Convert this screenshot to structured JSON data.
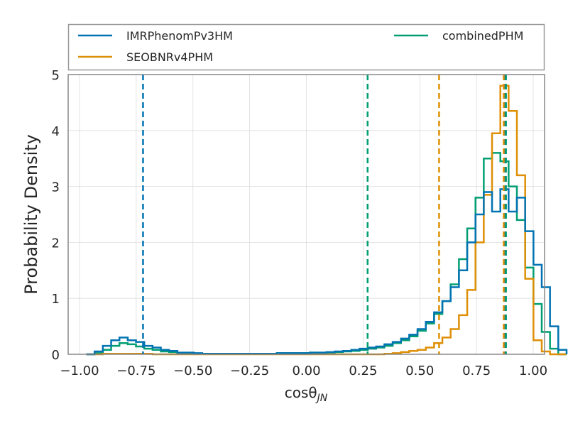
{
  "chart_data": {
    "type": "histogram",
    "xlabel": "cosθ",
    "xlabel_sub": "JN",
    "ylabel": "Probability Density",
    "xlim": [
      -1.05,
      1.05
    ],
    "ylim": [
      0,
      5
    ],
    "xticks": [
      -1.0,
      -0.75,
      -0.5,
      -0.25,
      0.0,
      0.25,
      0.5,
      0.75,
      1.0
    ],
    "xtick_labels": [
      "−1.00",
      "−0.75",
      "−0.50",
      "−0.25",
      "0.00",
      "0.25",
      "0.50",
      "0.75",
      "1.00"
    ],
    "yticks": [
      0,
      1,
      2,
      3,
      4,
      5
    ],
    "ytick_labels": [
      "0",
      "1",
      "2",
      "3",
      "4",
      "5"
    ],
    "grid": true,
    "legend_position": "top (outside), 2 columns",
    "bin_start": -0.97,
    "bin_width": 0.0365,
    "series": [
      {
        "name": "IMRPhenomPv3HM",
        "color": "#0173b2",
        "values": [
          0.0,
          0.05,
          0.15,
          0.25,
          0.3,
          0.25,
          0.22,
          0.15,
          0.12,
          0.08,
          0.06,
          0.03,
          0.03,
          0.02,
          0.01,
          0.01,
          0.01,
          0.01,
          0.01,
          0.01,
          0.01,
          0.01,
          0.01,
          0.02,
          0.02,
          0.02,
          0.02,
          0.03,
          0.03,
          0.04,
          0.05,
          0.06,
          0.08,
          0.1,
          0.12,
          0.14,
          0.18,
          0.22,
          0.28,
          0.35,
          0.45,
          0.58,
          0.75,
          0.95,
          1.2,
          1.5,
          2.0,
          2.5,
          2.9,
          2.55,
          2.95,
          2.55,
          2.8,
          2.2,
          1.6,
          1.2,
          0.5,
          0.08
        ],
        "median_line": -0.72
      },
      {
        "name": "SEOBNRv4PHM",
        "color": "#de8f05",
        "values": [
          0.0,
          0.0,
          0.01,
          0.01,
          0.01,
          0.01,
          0.01,
          0.01,
          0.0,
          0.0,
          0.0,
          0.0,
          0.0,
          0.0,
          0.0,
          0.0,
          0.0,
          0.0,
          0.0,
          0.0,
          0.0,
          0.0,
          0.0,
          0.0,
          0.0,
          0.0,
          0.0,
          0.0,
          0.0,
          0.0,
          0.0,
          0.0,
          0.0,
          0.0,
          0.0,
          0.0,
          0.01,
          0.02,
          0.04,
          0.06,
          0.08,
          0.12,
          0.2,
          0.3,
          0.45,
          0.7,
          1.15,
          2.0,
          2.85,
          3.95,
          4.8,
          4.35,
          3.2,
          1.35,
          0.25,
          0.05,
          0.0,
          0.0
        ],
        "median_line": 0.585
      },
      {
        "name": "combinedPHM",
        "color": "#029e73",
        "values": [
          0.0,
          0.02,
          0.08,
          0.15,
          0.2,
          0.18,
          0.14,
          0.1,
          0.08,
          0.05,
          0.04,
          0.02,
          0.02,
          0.01,
          0.01,
          0.01,
          0.01,
          0.01,
          0.01,
          0.01,
          0.01,
          0.01,
          0.01,
          0.02,
          0.02,
          0.02,
          0.02,
          0.03,
          0.03,
          0.03,
          0.04,
          0.05,
          0.06,
          0.08,
          0.1,
          0.12,
          0.15,
          0.2,
          0.25,
          0.32,
          0.42,
          0.55,
          0.72,
          0.95,
          1.25,
          1.7,
          2.25,
          2.8,
          3.5,
          3.6,
          3.45,
          3.0,
          2.4,
          1.55,
          0.9,
          0.4,
          0.1,
          0.0
        ],
        "median_line": 0.27
      }
    ],
    "extra_lines": [
      {
        "color": "#0173b2",
        "x": 0.875
      },
      {
        "color": "#de8f05",
        "x": 0.87
      },
      {
        "color": "#029e73",
        "x": 0.88
      }
    ]
  }
}
